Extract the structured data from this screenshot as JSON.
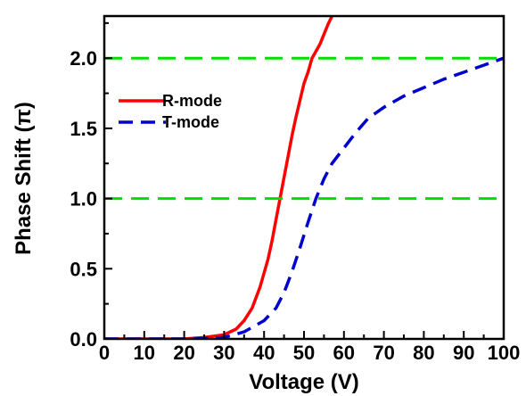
{
  "chart_data": {
    "type": "line",
    "xlabel": "Voltage (V)",
    "ylabel": "Phase Shift (π)",
    "xlim": [
      0,
      100
    ],
    "ylim": [
      0,
      2.3
    ],
    "xticks": [
      "0",
      "10",
      "20",
      "30",
      "40",
      "50",
      "60",
      "70",
      "80",
      "90",
      "100"
    ],
    "yticks": [
      "0.0",
      "0.5",
      "1.0",
      "1.5",
      "2.0"
    ],
    "legend_position": "upper-left",
    "series": [
      {
        "name": "R-mode",
        "color": "#ff0000",
        "style": "solid",
        "points": [
          [
            0,
            0
          ],
          [
            10,
            0
          ],
          [
            20,
            0
          ],
          [
            25,
            0.01
          ],
          [
            30,
            0.03
          ],
          [
            33,
            0.07
          ],
          [
            35,
            0.13
          ],
          [
            37,
            0.22
          ],
          [
            39,
            0.37
          ],
          [
            41,
            0.57
          ],
          [
            42,
            0.7
          ],
          [
            43,
            0.85
          ],
          [
            44,
            1.0
          ],
          [
            45,
            1.15
          ],
          [
            46,
            1.3
          ],
          [
            47,
            1.45
          ],
          [
            48,
            1.58
          ],
          [
            49,
            1.7
          ],
          [
            50,
            1.82
          ],
          [
            51,
            1.9
          ],
          [
            52,
            2.0
          ],
          [
            54,
            2.1
          ],
          [
            56,
            2.24
          ],
          [
            57,
            2.3
          ]
        ]
      },
      {
        "name": "T-mode",
        "color": "#0000cc",
        "style": "dashed",
        "points": [
          [
            0,
            0
          ],
          [
            20,
            0
          ],
          [
            30,
            0.01
          ],
          [
            35,
            0.05
          ],
          [
            40,
            0.13
          ],
          [
            43,
            0.22
          ],
          [
            45,
            0.33
          ],
          [
            47,
            0.48
          ],
          [
            49,
            0.65
          ],
          [
            51,
            0.83
          ],
          [
            53,
            1.0
          ],
          [
            55,
            1.14
          ],
          [
            57,
            1.25
          ],
          [
            60,
            1.36
          ],
          [
            63,
            1.47
          ],
          [
            66,
            1.57
          ],
          [
            70,
            1.65
          ],
          [
            75,
            1.73
          ],
          [
            80,
            1.79
          ],
          [
            85,
            1.85
          ],
          [
            90,
            1.9
          ],
          [
            95,
            1.95
          ],
          [
            100,
            2.0
          ]
        ]
      },
      {
        "name": "",
        "color": "#00dd00",
        "style": "dashed",
        "points": [
          [
            0,
            2.0
          ],
          [
            100,
            2.0
          ]
        ]
      },
      {
        "name": "",
        "color": "#00dd00",
        "style": "dashed",
        "points": [
          [
            0,
            1.0
          ],
          [
            100,
            1.0
          ]
        ]
      }
    ]
  }
}
